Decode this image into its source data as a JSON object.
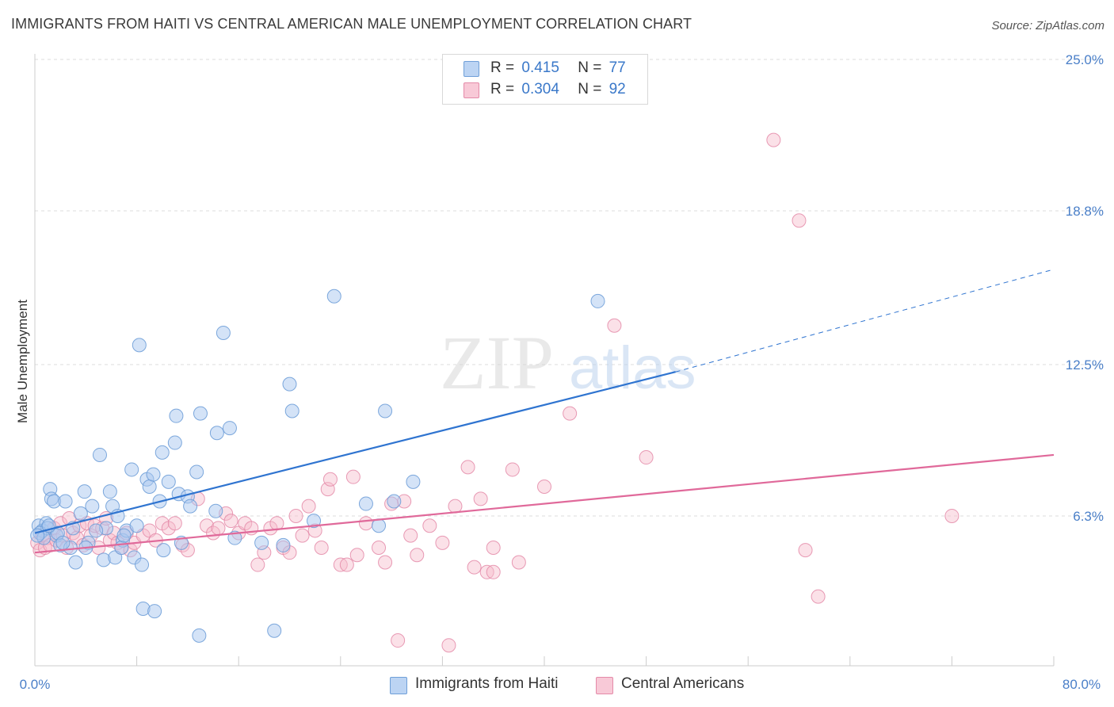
{
  "title": "IMMIGRANTS FROM HAITI VS CENTRAL AMERICAN MALE UNEMPLOYMENT CORRELATION CHART",
  "source": "Source: ZipAtlas.com",
  "watermark": {
    "zip": "ZIP",
    "atlas": "atlas"
  },
  "legend_top": [
    {
      "r_label": "R =",
      "r_value": "0.415",
      "n_label": "N =",
      "n_value": "77"
    },
    {
      "r_label": "R =",
      "r_value": "0.304",
      "n_label": "N =",
      "n_value": "92"
    }
  ],
  "legend_bottom": [
    "Immigrants from Haiti",
    "Central Americans"
  ],
  "colors": {
    "haiti_fill": "#aac8f0",
    "haiti_stroke": "#6f9fd8",
    "haiti_line": "#2f74d0",
    "central_fill": "#f6bccd",
    "central_stroke": "#e48aa8",
    "central_line": "#e0699a",
    "tick_text": "#4a7fc8",
    "grid": "#dcdcdc"
  },
  "chart_data": {
    "type": "scatter",
    "xlabel": "",
    "ylabel": "Male Unemployment",
    "xlim": [
      0,
      80
    ],
    "ylim": [
      0,
      25
    ],
    "x_tick_labels": [
      "0.0%",
      "80.0%"
    ],
    "y_ticks": [
      6.3,
      12.5,
      18.8,
      25.0
    ],
    "y_tick_labels": [
      "6.3%",
      "12.5%",
      "18.8%",
      "25.0%"
    ],
    "grid": "horizontal dashed",
    "legend_position": "top-center",
    "series": [
      {
        "name": "Immigrants from Haiti",
        "r": 0.415,
        "n": 77,
        "trend": {
          "x": [
            0,
            50.3
          ],
          "y": [
            5.6,
            12.2
          ],
          "dashed_to": [
            80,
            16.4
          ]
        },
        "points": [
          [
            0.3,
            5.9
          ],
          [
            0.6,
            5.7
          ],
          [
            0.9,
            6.0
          ],
          [
            1.0,
            5.8
          ],
          [
            1.2,
            7.4
          ],
          [
            1.3,
            7.0
          ],
          [
            1.5,
            6.9
          ],
          [
            1.7,
            5.5
          ],
          [
            2.0,
            5.1
          ],
          [
            2.4,
            6.9
          ],
          [
            2.8,
            5.0
          ],
          [
            3.2,
            4.4
          ],
          [
            3.6,
            6.4
          ],
          [
            3.9,
            7.3
          ],
          [
            4.2,
            5.2
          ],
          [
            4.5,
            6.7
          ],
          [
            5.1,
            8.8
          ],
          [
            5.4,
            4.5
          ],
          [
            5.6,
            5.8
          ],
          [
            5.9,
            7.3
          ],
          [
            6.1,
            6.7
          ],
          [
            6.3,
            4.6
          ],
          [
            6.5,
            6.3
          ],
          [
            6.9,
            5.3
          ],
          [
            7.2,
            5.7
          ],
          [
            7.6,
            8.2
          ],
          [
            7.8,
            4.6
          ],
          [
            8.0,
            5.9
          ],
          [
            8.2,
            13.3
          ],
          [
            8.4,
            4.3
          ],
          [
            8.5,
            2.5
          ],
          [
            8.8,
            7.8
          ],
          [
            9.0,
            7.5
          ],
          [
            9.3,
            8.0
          ],
          [
            9.4,
            2.4
          ],
          [
            9.8,
            6.9
          ],
          [
            10.0,
            8.9
          ],
          [
            10.1,
            4.9
          ],
          [
            10.5,
            7.7
          ],
          [
            11.0,
            9.3
          ],
          [
            11.1,
            10.4
          ],
          [
            11.3,
            7.2
          ],
          [
            11.5,
            5.2
          ],
          [
            12.0,
            7.1
          ],
          [
            12.2,
            6.7
          ],
          [
            12.7,
            8.1
          ],
          [
            12.9,
            1.4
          ],
          [
            13.0,
            10.5
          ],
          [
            14.2,
            6.5
          ],
          [
            14.3,
            9.7
          ],
          [
            14.8,
            13.8
          ],
          [
            15.3,
            9.9
          ],
          [
            15.7,
            5.4
          ],
          [
            17.8,
            5.2
          ],
          [
            18.8,
            1.6
          ],
          [
            19.5,
            5.1
          ],
          [
            20.0,
            11.7
          ],
          [
            20.2,
            10.6
          ],
          [
            21.9,
            6.1
          ],
          [
            23.5,
            15.3
          ],
          [
            26.0,
            6.8
          ],
          [
            27.0,
            5.9
          ],
          [
            27.5,
            10.6
          ],
          [
            28.2,
            6.9
          ],
          [
            29.7,
            7.7
          ],
          [
            44.2,
            15.1
          ],
          [
            0.4,
            5.6
          ],
          [
            0.7,
            5.4
          ],
          [
            1.8,
            5.6
          ],
          [
            2.2,
            5.2
          ],
          [
            3.0,
            5.8
          ],
          [
            4.0,
            5.0
          ],
          [
            4.8,
            5.7
          ],
          [
            6.8,
            5.0
          ],
          [
            7.0,
            5.5
          ],
          [
            0.2,
            5.5
          ],
          [
            1.1,
            5.9
          ]
        ]
      },
      {
        "name": "Central Americans",
        "r": 0.304,
        "n": 92,
        "trend": {
          "x": [
            0,
            80
          ],
          "y": [
            4.8,
            8.8
          ]
        },
        "points": [
          [
            0.2,
            5.2
          ],
          [
            0.4,
            4.9
          ],
          [
            0.6,
            5.5
          ],
          [
            0.8,
            5.0
          ],
          [
            1.0,
            5.4
          ],
          [
            1.2,
            5.1
          ],
          [
            1.5,
            5.8
          ],
          [
            1.7,
            5.3
          ],
          [
            2.0,
            6.0
          ],
          [
            2.2,
            5.5
          ],
          [
            2.5,
            5.0
          ],
          [
            2.7,
            6.2
          ],
          [
            3.0,
            5.6
          ],
          [
            3.3,
            5.4
          ],
          [
            3.5,
            5.9
          ],
          [
            3.8,
            5.1
          ],
          [
            4.1,
            6.0
          ],
          [
            4.4,
            5.5
          ],
          [
            4.7,
            5.9
          ],
          [
            5.0,
            5.0
          ],
          [
            5.3,
            5.8
          ],
          [
            5.6,
            6.2
          ],
          [
            5.9,
            5.3
          ],
          [
            6.2,
            5.6
          ],
          [
            6.5,
            5.2
          ],
          [
            6.8,
            5.0
          ],
          [
            7.2,
            5.6
          ],
          [
            7.5,
            4.9
          ],
          [
            7.8,
            5.2
          ],
          [
            8.5,
            5.5
          ],
          [
            9.0,
            5.7
          ],
          [
            9.5,
            5.3
          ],
          [
            10.0,
            6.0
          ],
          [
            10.5,
            5.8
          ],
          [
            11.0,
            6.0
          ],
          [
            11.6,
            5.1
          ],
          [
            12.0,
            4.9
          ],
          [
            12.8,
            7.0
          ],
          [
            13.5,
            5.9
          ],
          [
            14.0,
            5.6
          ],
          [
            14.4,
            5.8
          ],
          [
            15.0,
            6.4
          ],
          [
            15.4,
            6.1
          ],
          [
            16.0,
            5.6
          ],
          [
            16.5,
            6.0
          ],
          [
            17.0,
            5.8
          ],
          [
            17.5,
            4.3
          ],
          [
            18.0,
            4.8
          ],
          [
            18.5,
            5.8
          ],
          [
            19.0,
            6.0
          ],
          [
            19.5,
            5.0
          ],
          [
            20.0,
            4.8
          ],
          [
            20.5,
            6.3
          ],
          [
            21.0,
            5.5
          ],
          [
            21.5,
            6.7
          ],
          [
            22.0,
            5.7
          ],
          [
            22.5,
            5.0
          ],
          [
            23.0,
            7.4
          ],
          [
            23.2,
            7.8
          ],
          [
            24.0,
            4.3
          ],
          [
            24.5,
            4.3
          ],
          [
            25.0,
            7.9
          ],
          [
            25.3,
            4.7
          ],
          [
            26.0,
            6.0
          ],
          [
            27.0,
            5.0
          ],
          [
            27.5,
            4.4
          ],
          [
            28.0,
            6.8
          ],
          [
            29.0,
            6.9
          ],
          [
            29.5,
            5.5
          ],
          [
            30.0,
            4.7
          ],
          [
            31.0,
            5.9
          ],
          [
            32.0,
            5.2
          ],
          [
            33.0,
            6.7
          ],
          [
            34.0,
            8.3
          ],
          [
            34.5,
            4.2
          ],
          [
            35.0,
            7.0
          ],
          [
            35.5,
            4.0
          ],
          [
            36.0,
            5.0
          ],
          [
            37.5,
            8.2
          ],
          [
            38.0,
            4.4
          ],
          [
            40.0,
            7.5
          ],
          [
            42.0,
            10.5
          ],
          [
            45.5,
            14.1
          ],
          [
            48.0,
            8.7
          ],
          [
            58.0,
            21.7
          ],
          [
            60.0,
            18.4
          ],
          [
            60.5,
            4.9
          ],
          [
            61.5,
            3.0
          ],
          [
            72.0,
            6.3
          ],
          [
            28.5,
            1.2
          ],
          [
            32.5,
            1.0
          ],
          [
            36.0,
            4.0
          ]
        ]
      }
    ]
  }
}
